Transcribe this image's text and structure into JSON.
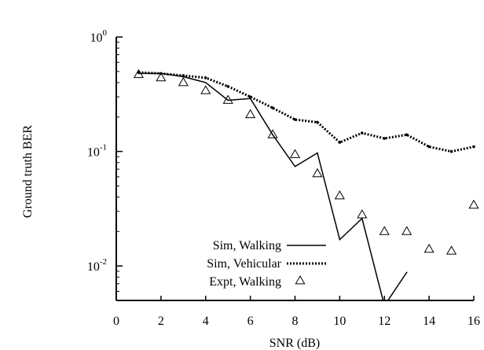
{
  "chart_data": {
    "type": "line",
    "title": "",
    "xlabel": "SNR (dB)",
    "ylabel": "Ground truth BER",
    "xlim": [
      0,
      16
    ],
    "ylim": [
      0.005,
      1
    ],
    "yscale": "log",
    "xticks": [
      "0",
      "2",
      "4",
      "6",
      "8",
      "10",
      "12",
      "14",
      "16"
    ],
    "yticks": [
      {
        "base": "10",
        "exp": "0",
        "value": 1
      },
      {
        "base": "10",
        "exp": "-1",
        "value": 0.1
      },
      {
        "base": "10",
        "exp": "-2",
        "value": 0.01
      }
    ],
    "grid": false,
    "legend_position": "bottom-left",
    "series": [
      {
        "name": "Sim, Walking",
        "style": "solid",
        "x": [
          1,
          2,
          3,
          4,
          5,
          6,
          7,
          8,
          9,
          10,
          11,
          12,
          13
        ],
        "y": [
          0.48,
          0.48,
          0.45,
          0.4,
          0.28,
          0.29,
          0.14,
          0.074,
          0.097,
          0.017,
          0.026,
          0.0045,
          0.0088
        ]
      },
      {
        "name": "Sim, Vehicular",
        "style": "dotted",
        "x": [
          1,
          2,
          3,
          4,
          5,
          6,
          7,
          8,
          9,
          10,
          11,
          12,
          13,
          14,
          15,
          16
        ],
        "y": [
          0.49,
          0.48,
          0.46,
          0.44,
          0.37,
          0.3,
          0.24,
          0.19,
          0.18,
          0.12,
          0.145,
          0.13,
          0.14,
          0.11,
          0.1,
          0.11
        ]
      },
      {
        "name": "Expt, Walking",
        "style": "markers",
        "marker": "triangle",
        "x": [
          1,
          2,
          3,
          4,
          5,
          6,
          7,
          8,
          9,
          10,
          11,
          12,
          13,
          14,
          15,
          16
        ],
        "y": [
          0.47,
          0.44,
          0.4,
          0.34,
          0.28,
          0.21,
          0.14,
          0.094,
          0.064,
          0.041,
          0.028,
          0.02,
          0.02,
          0.014,
          0.0135,
          0.034
        ]
      }
    ]
  }
}
